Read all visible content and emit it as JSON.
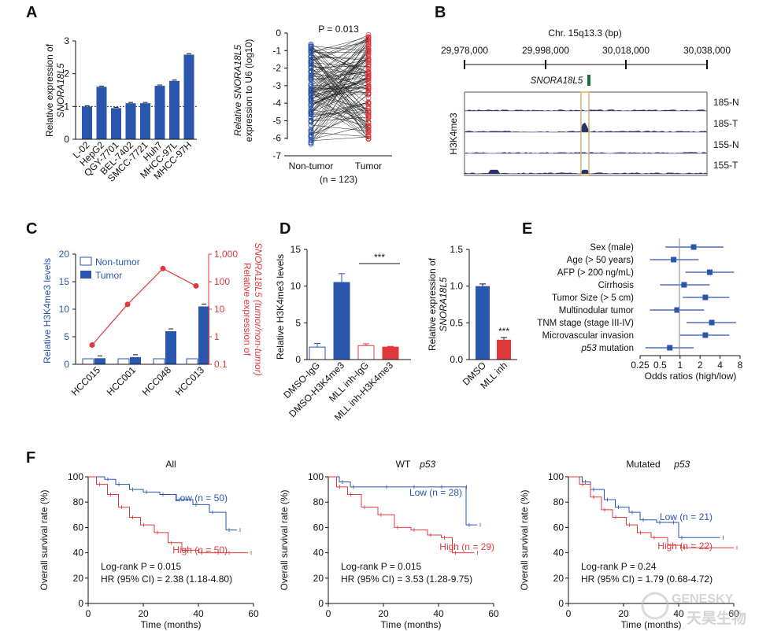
{
  "colors": {
    "blue": "#2a56ad",
    "red": "#e0383c",
    "text": "#111111",
    "green": "#1f6b3c",
    "gold": "#d4b06a"
  },
  "panels": {
    "A": "A",
    "B": "B",
    "C": "C",
    "D": "D",
    "E": "E",
    "F": "F"
  },
  "chart_data": [
    {
      "id": "A1",
      "type": "bar",
      "ylabel_lines": [
        "Relative expression of",
        "SNORA18L5"
      ],
      "categories": [
        "L-02",
        "HepG2",
        "QGY-7701",
        "BEL-7402",
        "SMCC-7721",
        "Huh7",
        "MHCC-97L",
        "MHCC-97H"
      ],
      "values": [
        1.0,
        1.6,
        0.95,
        1.1,
        1.1,
        1.63,
        1.78,
        2.58
      ],
      "ylim": [
        0,
        3
      ],
      "yticks": [
        "0",
        "1",
        "2",
        "3"
      ],
      "reference_line": 1,
      "color": "blue"
    },
    {
      "id": "A2",
      "type": "scatter",
      "title": "P = 0.013",
      "ylabel_lines": [
        "Relative SNORA18L5",
        "expression to U6 (log10)"
      ],
      "categories": [
        "Non-tumor",
        "Tumor"
      ],
      "n_label": "(n = 123)",
      "ylim": [
        -7,
        0
      ],
      "yticks": [
        "0",
        "-1",
        "-2",
        "-3",
        "-4",
        "-5",
        "-6",
        "-7"
      ],
      "series": [
        {
          "name": "Non-tumor",
          "color": "blue"
        },
        {
          "name": "Tumor",
          "color": "red"
        }
      ]
    },
    {
      "id": "B",
      "type": "track",
      "title": "Chr. 15q13.3 (bp)",
      "ticks": [
        "29,978,000",
        "29,998,000",
        "30,018,000",
        "30,038,000"
      ],
      "gene": "SNORA18L5",
      "ylabel": "H3K4me3",
      "tracks": [
        "185-N",
        "185-T",
        "155-N",
        "155-T"
      ]
    },
    {
      "id": "C",
      "type": "bar",
      "ylabel": "Relative H3K4me3 levels",
      "y2label_lines": [
        "Relative expression of",
        "SNORA18L5 (tumor/non-tumor)"
      ],
      "categories": [
        "HCC015",
        "HCC001",
        "HCC048",
        "HCC013"
      ],
      "series": [
        {
          "name": "Non-tumor",
          "values": [
            1,
            1,
            1,
            1
          ]
        },
        {
          "name": "Tumor",
          "values": [
            1.1,
            1.3,
            6.0,
            10.5
          ]
        }
      ],
      "line_values": [
        0.5,
        15,
        300,
        70
      ],
      "ylim": [
        0,
        20
      ],
      "yticks": [
        "0",
        "5",
        "10",
        "15",
        "20"
      ],
      "y2ticks": [
        "0.1",
        "1",
        "10",
        "100",
        "1,000"
      ],
      "legend": [
        "Non-tumor",
        "Tumor"
      ]
    },
    {
      "id": "D1",
      "type": "bar",
      "ylabel": "Relative H3K4me3 levels",
      "categories": [
        "DMSO-IgG",
        "DMSO-H3K4me3",
        "MLL inh-IgG",
        "MLL inh-H3K4me3"
      ],
      "values": [
        1.7,
        10.5,
        1.9,
        1.7
      ],
      "errors": [
        0.5,
        1.2,
        0.25,
        0.1
      ],
      "ylim": [
        0,
        15
      ],
      "yticks": [
        "0",
        "5",
        "10",
        "15"
      ],
      "significance": "***"
    },
    {
      "id": "D2",
      "type": "bar",
      "ylabel_lines": [
        "Relative expression of",
        "SNORA18L5"
      ],
      "categories": [
        "DMSO",
        "MLL inh"
      ],
      "values": [
        1.0,
        0.27
      ],
      "errors": [
        0.03,
        0.03
      ],
      "ylim": [
        0,
        1.5
      ],
      "yticks": [
        "0.0",
        "0.5",
        "1.0",
        "1.5"
      ],
      "significance": "***"
    },
    {
      "id": "E",
      "type": "forest",
      "xlabel": "Odds ratios (high/low)",
      "xticks": [
        "0.25",
        "0.5",
        "1",
        "2",
        "4",
        "8"
      ],
      "rows": [
        {
          "label": "Sex (male)",
          "or": 1.6,
          "lo": 0.6,
          "hi": 4.5
        },
        {
          "label": "Age (> 50 years)",
          "or": 0.8,
          "lo": 0.35,
          "hi": 1.9
        },
        {
          "label": "AFP (> 200 ng/mL)",
          "or": 2.8,
          "lo": 1.2,
          "hi": 6.5
        },
        {
          "label": "Cirrhosis",
          "or": 1.15,
          "lo": 0.5,
          "hi": 2.8
        },
        {
          "label": "Tumor Size (> 5 cm)",
          "or": 2.4,
          "lo": 1.1,
          "hi": 5.5
        },
        {
          "label": "Multinodular tumor",
          "or": 0.9,
          "lo": 0.35,
          "hi": 2.3
        },
        {
          "label": "TNM stage (stage III-IV)",
          "or": 3.0,
          "lo": 1.25,
          "hi": 7.0
        },
        {
          "label": "Microvascular invasion",
          "or": 2.4,
          "lo": 1.0,
          "hi": 5.5
        },
        {
          "label": "p53 mutation",
          "or": 0.7,
          "lo": 0.3,
          "hi": 1.6
        }
      ]
    },
    {
      "id": "F1",
      "type": "line",
      "title": "All",
      "title_italic": "",
      "ylabel": "Overall survival rate (%)",
      "xlabel": "Time (months)",
      "xticks": [
        "0",
        "20",
        "40",
        "60"
      ],
      "yticks": [
        "0",
        "20",
        "40",
        "60",
        "80",
        "100"
      ],
      "xlim": [
        0,
        60
      ],
      "ylim": [
        0,
        100
      ],
      "series": [
        {
          "name": "Low (n = 50)",
          "color": "blue",
          "points": [
            [
              0,
              100
            ],
            [
              6,
              98
            ],
            [
              10,
              94
            ],
            [
              15,
              90
            ],
            [
              20,
              88
            ],
            [
              26,
              86
            ],
            [
              32,
              82
            ],
            [
              38,
              78
            ],
            [
              44,
              72
            ],
            [
              50,
              58
            ],
            [
              54,
              58
            ]
          ]
        },
        {
          "name": "High (n = 50)",
          "color": "red",
          "points": [
            [
              0,
              100
            ],
            [
              3,
              94
            ],
            [
              7,
              86
            ],
            [
              11,
              76
            ],
            [
              15,
              68
            ],
            [
              19,
              62
            ],
            [
              24,
              56
            ],
            [
              29,
              48
            ],
            [
              34,
              42
            ],
            [
              40,
              40
            ],
            [
              46,
              40
            ],
            [
              50,
              40
            ],
            [
              58,
              40
            ]
          ]
        }
      ],
      "stats": [
        "Log-rank P = 0.015",
        "HR (95% CI) = 2.38 (1.18-4.80)"
      ]
    },
    {
      "id": "F2",
      "type": "line",
      "title": "WT",
      "title_italic": "p53",
      "ylabel": "Overall survival rate (%)",
      "xlabel": "Time (months)",
      "xticks": [
        "0",
        "20",
        "40",
        "60"
      ],
      "yticks": [
        "0",
        "20",
        "40",
        "60",
        "80",
        "100"
      ],
      "xlim": [
        0,
        60
      ],
      "ylim": [
        0,
        100
      ],
      "series": [
        {
          "name": "Low (n = 28)",
          "color": "blue",
          "points": [
            [
              0,
              100
            ],
            [
              4,
              96
            ],
            [
              8,
              92
            ],
            [
              20,
              92
            ],
            [
              30,
              92
            ],
            [
              40,
              92
            ],
            [
              49,
              92
            ],
            [
              50,
              62
            ],
            [
              54,
              62
            ]
          ]
        },
        {
          "name": "High (n = 29)",
          "color": "red",
          "points": [
            [
              0,
              100
            ],
            [
              3,
              92
            ],
            [
              7,
              86
            ],
            [
              12,
              76
            ],
            [
              18,
              70
            ],
            [
              24,
              60
            ],
            [
              30,
              58
            ],
            [
              36,
              54
            ],
            [
              41,
              52
            ],
            [
              45,
              40
            ],
            [
              53,
              40
            ]
          ]
        }
      ],
      "stats": [
        "Log-rank P = 0.015",
        "HR (95% CI) = 3.53 (1.28-9.75)"
      ]
    },
    {
      "id": "F3",
      "type": "line",
      "title": "Mutated",
      "title_italic": "p53",
      "ylabel": "Overall survival rate (%)",
      "xlabel": "Time (months)",
      "xticks": [
        "0",
        "20",
        "40",
        "60"
      ],
      "yticks": [
        "0",
        "20",
        "40",
        "60",
        "80",
        "100"
      ],
      "xlim": [
        0,
        60
      ],
      "ylim": [
        0,
        100
      ],
      "series": [
        {
          "name": "Low (n = 21)",
          "color": "blue",
          "points": [
            [
              0,
              100
            ],
            [
              5,
              96
            ],
            [
              8,
              90
            ],
            [
              13,
              82
            ],
            [
              17,
              76
            ],
            [
              22,
              72
            ],
            [
              26,
              66
            ],
            [
              32,
              64
            ],
            [
              37,
              64
            ],
            [
              40,
              52
            ],
            [
              55,
              52
            ]
          ]
        },
        {
          "name": "High (n = 22)",
          "color": "red",
          "points": [
            [
              0,
              100
            ],
            [
              4,
              94
            ],
            [
              8,
              84
            ],
            [
              12,
              74
            ],
            [
              16,
              68
            ],
            [
              21,
              62
            ],
            [
              25,
              56
            ],
            [
              30,
              52
            ],
            [
              36,
              46
            ],
            [
              41,
              44
            ],
            [
              60,
              44
            ]
          ]
        }
      ],
      "stats": [
        "Log-rank P = 0.24",
        "HR (95% CI) = 1.79 (0.68-4.72)"
      ]
    }
  ],
  "watermark": {
    "brand": "GENESKY",
    "brand_cn": "天昊生物"
  }
}
